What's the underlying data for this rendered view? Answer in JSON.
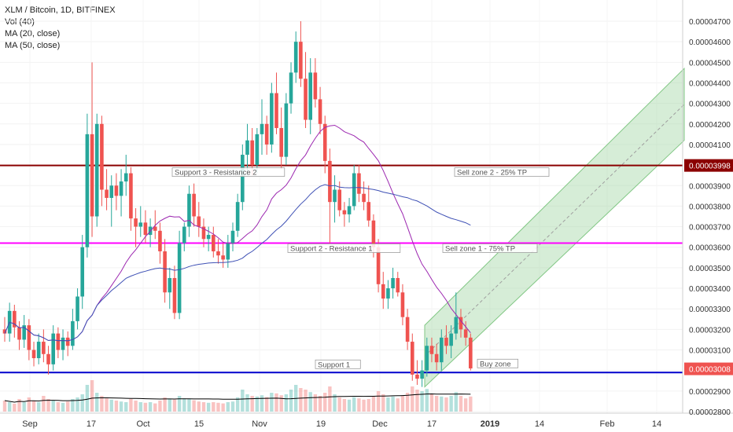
{
  "legend": {
    "symbol": "XLM / Bitcoin, 1D, BITFINEX",
    "vol": "Vol (40)",
    "ma20": "MA (20, close)",
    "ma50": "MA (50, close)"
  },
  "colors": {
    "up": "#26a69a",
    "down": "#ef5350",
    "ma20": "#9c27b0",
    "ma50": "#3f51b5",
    "resistance2": "#8b0000",
    "resistance1": "#ff00ff",
    "support1": "#0000cc",
    "channel": "#a5d6a7",
    "volume_ma": "#000000"
  },
  "chart_data": {
    "type": "candlestick",
    "y_axis": {
      "ticks": [
        "0.00004700",
        "0.00004600",
        "0.00004500",
        "0.00004400",
        "0.00004300",
        "0.00004200",
        "0.00004100",
        "0.00004000",
        "0.00003900",
        "0.00003800",
        "0.00003700",
        "0.00003600",
        "0.00003500",
        "0.00003400",
        "0.00003300",
        "0.00003200",
        "0.00003100",
        "0.00003000",
        "0.00002900",
        "0.00002800"
      ],
      "range": [
        2.79e-05,
        4.77e-05
      ],
      "price_labels": [
        {
          "value": 3.998e-05,
          "text": "0.00003998",
          "color": "#8b0000"
        },
        {
          "value": 3.008e-05,
          "text": "0.00003008",
          "color": "#ef5350"
        }
      ]
    },
    "x_axis": {
      "ticks": [
        "Sep",
        "17",
        "Oct",
        "15",
        "Nov",
        "19",
        "Dec",
        "17",
        "2019",
        "14",
        "Feb",
        "14"
      ]
    },
    "horizontal_lines": [
      {
        "name": "Support 3 - Resistance 2",
        "value": 3.998e-05,
        "color": "#8b0000"
      },
      {
        "name": "Support 2 - Resistance 1",
        "value": 3.62e-05,
        "color": "#ff00ff"
      },
      {
        "name": "Support 1",
        "value": 2.99e-05,
        "color": "#0000cc"
      }
    ],
    "annotations": [
      {
        "text": "Support 3 - Resistance 2"
      },
      {
        "text": "Sell zone 2 - 25% TP"
      },
      {
        "text": "Support 2 - Resistance 1"
      },
      {
        "text": "Sell zone 1 - 75% TP"
      },
      {
        "text": "Support 1"
      },
      {
        "text": "Buy zone"
      }
    ],
    "candles": [
      [
        3.2,
        3.26,
        3.14,
        3.18
      ],
      [
        3.18,
        3.33,
        3.14,
        3.29
      ],
      [
        3.29,
        3.32,
        3.16,
        3.21
      ],
      [
        3.21,
        3.24,
        3.1,
        3.15
      ],
      [
        3.15,
        3.27,
        3.11,
        3.22
      ],
      [
        3.22,
        3.25,
        3.05,
        3.1
      ],
      [
        3.1,
        3.14,
        3.02,
        3.06
      ],
      [
        3.06,
        3.18,
        3.03,
        3.14
      ],
      [
        3.14,
        3.2,
        3.04,
        3.08
      ],
      [
        3.08,
        3.12,
        2.98,
        3.03
      ],
      [
        3.03,
        3.22,
        3.0,
        3.18
      ],
      [
        3.18,
        3.21,
        3.06,
        3.1
      ],
      [
        3.1,
        3.2,
        3.05,
        3.16
      ],
      [
        3.16,
        3.19,
        3.07,
        3.12
      ],
      [
        3.12,
        3.3,
        3.1,
        3.24
      ],
      [
        3.24,
        3.4,
        3.2,
        3.36
      ],
      [
        3.36,
        3.66,
        3.3,
        3.6
      ],
      [
        3.6,
        4.25,
        3.55,
        4.15
      ],
      [
        4.15,
        4.5,
        3.65,
        3.75
      ],
      [
        3.75,
        4.25,
        3.7,
        4.2
      ],
      [
        4.2,
        4.24,
        3.8,
        3.88
      ],
      [
        3.88,
        3.98,
        3.78,
        3.84
      ],
      [
        3.84,
        3.95,
        3.7,
        3.9
      ],
      [
        3.9,
        3.96,
        3.78,
        3.85
      ],
      [
        3.85,
        3.98,
        3.75,
        3.92
      ],
      [
        3.92,
        4.05,
        3.85,
        3.96
      ],
      [
        3.96,
        3.99,
        3.68,
        3.74
      ],
      [
        3.74,
        3.79,
        3.6,
        3.7
      ],
      [
        3.7,
        3.8,
        3.65,
        3.72
      ],
      [
        3.72,
        3.78,
        3.62,
        3.66
      ],
      [
        3.66,
        3.74,
        3.6,
        3.7
      ],
      [
        3.7,
        3.78,
        3.64,
        3.68
      ],
      [
        3.68,
        3.72,
        3.52,
        3.58
      ],
      [
        3.58,
        3.64,
        3.33,
        3.38
      ],
      [
        3.38,
        3.5,
        3.3,
        3.45
      ],
      [
        3.45,
        3.51,
        3.25,
        3.28
      ],
      [
        3.28,
        3.68,
        3.25,
        3.62
      ],
      [
        3.62,
        3.72,
        3.58,
        3.7
      ],
      [
        3.7,
        3.9,
        3.65,
        3.86
      ],
      [
        3.86,
        3.91,
        3.7,
        3.75
      ],
      [
        3.75,
        3.82,
        3.65,
        3.7
      ],
      [
        3.7,
        3.74,
        3.6,
        3.64
      ],
      [
        3.64,
        3.7,
        3.58,
        3.66
      ],
      [
        3.66,
        3.7,
        3.55,
        3.58
      ],
      [
        3.58,
        3.64,
        3.52,
        3.56
      ],
      [
        3.56,
        3.62,
        3.5,
        3.54
      ],
      [
        3.54,
        3.66,
        3.5,
        3.62
      ],
      [
        3.62,
        3.72,
        3.58,
        3.68
      ],
      [
        3.68,
        3.86,
        3.65,
        3.82
      ],
      [
        3.82,
        4.1,
        3.78,
        4.05
      ],
      [
        4.05,
        4.2,
        3.95,
        4.12
      ],
      [
        4.12,
        4.18,
        3.95,
        4.0
      ],
      [
        4.0,
        4.18,
        3.96,
        4.15
      ],
      [
        4.15,
        4.32,
        4.05,
        4.2
      ],
      [
        4.2,
        4.24,
        4.05,
        4.1
      ],
      [
        4.1,
        4.4,
        4.06,
        4.35
      ],
      [
        4.35,
        4.45,
        4.15,
        4.18
      ],
      [
        4.18,
        4.28,
        3.98,
        4.04
      ],
      [
        4.04,
        4.35,
        4.0,
        4.3
      ],
      [
        4.3,
        4.5,
        4.25,
        4.45
      ],
      [
        4.45,
        4.65,
        4.4,
        4.6
      ],
      [
        4.6,
        4.7,
        4.38,
        4.42
      ],
      [
        4.42,
        4.55,
        4.18,
        4.22
      ],
      [
        4.22,
        4.52,
        4.15,
        4.45
      ],
      [
        4.45,
        4.52,
        4.28,
        4.32
      ],
      [
        4.32,
        4.38,
        4.15,
        4.2
      ],
      [
        4.2,
        4.24,
        3.96,
        4.02
      ],
      [
        4.02,
        4.08,
        3.62,
        3.82
      ],
      [
        3.82,
        3.95,
        3.72,
        3.88
      ],
      [
        3.88,
        3.92,
        3.75,
        3.78
      ],
      [
        3.78,
        3.82,
        3.7,
        3.76
      ],
      [
        3.76,
        3.84,
        3.72,
        3.8
      ],
      [
        3.8,
        4.0,
        3.78,
        3.96
      ],
      [
        3.96,
        4.0,
        3.82,
        3.86
      ],
      [
        3.86,
        3.92,
        3.78,
        3.82
      ],
      [
        3.82,
        3.9,
        3.7,
        3.73
      ],
      [
        3.73,
        3.76,
        3.55,
        3.6
      ],
      [
        3.6,
        3.64,
        3.38,
        3.42
      ],
      [
        3.42,
        3.48,
        3.3,
        3.35
      ],
      [
        3.35,
        3.44,
        3.3,
        3.4
      ],
      [
        3.4,
        3.5,
        3.35,
        3.45
      ],
      [
        3.45,
        3.48,
        3.36,
        3.38
      ],
      [
        3.38,
        3.42,
        3.22,
        3.26
      ],
      [
        3.26,
        3.3,
        3.1,
        3.14
      ],
      [
        3.14,
        3.18,
        2.95,
        2.98
      ],
      [
        2.98,
        3.05,
        2.93,
        2.96
      ],
      [
        2.96,
        3.05,
        2.92,
        3.0
      ],
      [
        3.0,
        3.16,
        2.97,
        3.12
      ],
      [
        3.12,
        3.16,
        3.04,
        3.08
      ],
      [
        3.08,
        3.13,
        3.0,
        3.04
      ],
      [
        3.04,
        3.2,
        3.0,
        3.16
      ],
      [
        3.16,
        3.22,
        3.08,
        3.12
      ],
      [
        3.12,
        3.22,
        3.06,
        3.18
      ],
      [
        3.18,
        3.38,
        3.15,
        3.26
      ],
      [
        3.26,
        3.3,
        3.16,
        3.2
      ],
      [
        3.2,
        3.24,
        3.12,
        3.16
      ],
      [
        3.16,
        3.18,
        3.0,
        3.01
      ]
    ],
    "volume": [
      0.35,
      0.3,
      0.25,
      0.4,
      0.3,
      0.45,
      0.35,
      0.3,
      0.5,
      0.4,
      0.35,
      0.3,
      0.28,
      0.32,
      0.4,
      0.45,
      0.55,
      0.85,
      1.0,
      0.6,
      0.5,
      0.42,
      0.38,
      0.35,
      0.32,
      0.3,
      0.4,
      0.35,
      0.3,
      0.28,
      0.3,
      0.26,
      0.35,
      0.45,
      0.4,
      0.38,
      0.5,
      0.42,
      0.4,
      0.36,
      0.32,
      0.3,
      0.28,
      0.3,
      0.28,
      0.26,
      0.3,
      0.32,
      0.45,
      0.7,
      0.55,
      0.5,
      0.48,
      0.52,
      0.46,
      0.6,
      0.58,
      0.52,
      0.55,
      0.7,
      0.85,
      0.75,
      0.7,
      0.62,
      0.55,
      0.5,
      0.6,
      0.8,
      0.55,
      0.45,
      0.4,
      0.38,
      0.46,
      0.42,
      0.38,
      0.4,
      0.5,
      0.65,
      0.55,
      0.45,
      0.48,
      0.42,
      0.5,
      0.6,
      0.8,
      0.7,
      0.65,
      0.72,
      0.55,
      0.5,
      0.48,
      0.45,
      0.5,
      0.62,
      0.5,
      0.42,
      0.48
    ]
  }
}
